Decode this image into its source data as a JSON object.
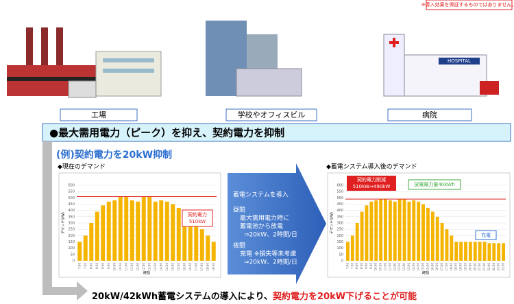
{
  "notice": "※導入効果を保証するものではありません。",
  "facilities": [
    "工場",
    "学校やオフィスビル",
    "病院"
  ],
  "hospital_sign": "HOSPITAL",
  "banner": "●最大需用電力（ピーク）を抑え、契約電力を抑制",
  "example": "(例)契約電力を20kW抑制",
  "arrow_text": [
    "蓄電システムを導入",
    "昼間",
    "最大需用電力時に",
    "蓄電池から放電",
    "⇒20kW、2時間/日",
    "夜間",
    "充電 ※損失等未考慮",
    "⇒20kW、2時間/日"
  ],
  "bottom_text": [
    "20kW/42kWh蓄電システムの導入により、",
    "契約電力を20kW下げることが可能"
  ],
  "chart_data": [
    {
      "type": "bar",
      "title": "◆現在のデマンド",
      "y_label": "デマンド(kW)",
      "x_label": "時刻",
      "categories": [
        "7:00",
        "7:30",
        "8:00",
        "8:30",
        "9:00",
        "9:30",
        "10:00",
        "10:30",
        "11:00",
        "11:30",
        "12:00",
        "12:30",
        "13:00",
        "13:30",
        "14:00",
        "14:30",
        "15:00",
        "15:30",
        "16:00",
        "16:30",
        "17:00",
        "17:30",
        "18:00",
        "18:30"
      ],
      "values": [
        150,
        200,
        300,
        390,
        440,
        470,
        480,
        510,
        510,
        480,
        470,
        510,
        510,
        470,
        480,
        470,
        450,
        420,
        390,
        350,
        300,
        250,
        200,
        150
      ],
      "color": "#f5b400",
      "contract_line": 510,
      "line_color": "#e02020",
      "ylim": [
        0,
        600
      ],
      "yticks": [
        0,
        50,
        100,
        150,
        200,
        250,
        300,
        350,
        400,
        450,
        500,
        550,
        600
      ],
      "grid": true,
      "annotations": [
        "契約電力",
        "510kW"
      ]
    },
    {
      "type": "bar",
      "title": "◆蓄電システム導入後のデマンド",
      "y_label": "デマンド(kW)",
      "x_label": "時刻",
      "categories": [
        "7:00",
        "7:30",
        "8:00",
        "8:30",
        "9:00",
        "9:30",
        "10:00",
        "10:30",
        "11:00",
        "11:30",
        "12:00",
        "12:30",
        "13:00",
        "13:30",
        "14:00",
        "14:30",
        "15:00",
        "15:30",
        "16:00",
        "16:30",
        "17:00",
        "17:30",
        "18:00",
        "18:30",
        "19:00",
        "19:30",
        "20:00",
        "20:30",
        "21:00",
        "21:30",
        "22:00",
        "22:30",
        "23:00",
        "23:30"
      ],
      "values": [
        150,
        200,
        300,
        390,
        440,
        470,
        480,
        490,
        490,
        480,
        470,
        490,
        490,
        470,
        480,
        470,
        450,
        420,
        390,
        350,
        300,
        250,
        200,
        150,
        150,
        150,
        150,
        150,
        150,
        150,
        140,
        140,
        140,
        140
      ],
      "color": "#f5b400",
      "contract_line": 490,
      "line_color": "#e02020",
      "ylim": [
        0,
        600
      ],
      "yticks": [
        0,
        50,
        100,
        150,
        200,
        250,
        300,
        350,
        400,
        450,
        500,
        550,
        600
      ],
      "grid": true,
      "annotations": [
        "契約電力削減",
        "510kW⇒490kW",
        "放電電力量40kWh",
        "充電"
      ]
    }
  ]
}
